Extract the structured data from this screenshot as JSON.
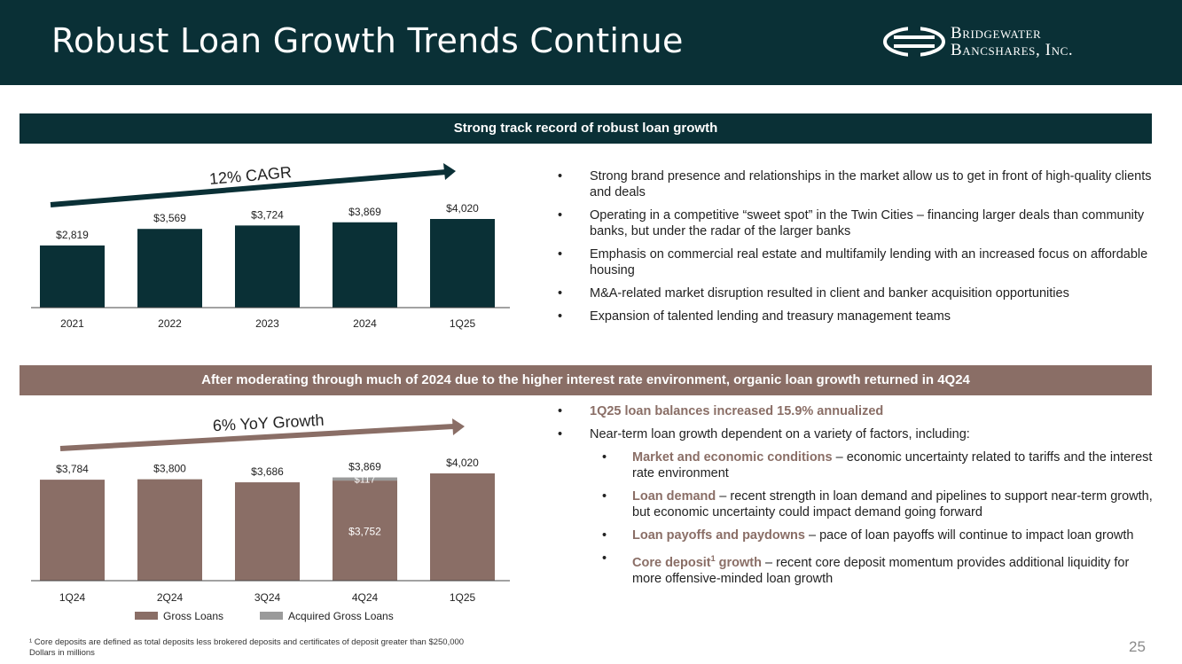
{
  "header": {
    "title": "Robust Loan Growth Trends Continue"
  },
  "logo": {
    "line1": "Bridgewater",
    "line2": "Bancshares, Inc."
  },
  "band_top": {
    "text": "Strong track record of robust loan growth"
  },
  "band_bottom": {
    "text": "After moderating through much of 2024 due to the higher interest rate environment, organic loan growth returned in 4Q24"
  },
  "colors": {
    "teal": "#0a3036",
    "brown": "#8a6e66",
    "gray": "#9a9a9a"
  },
  "chart_data": [
    {
      "type": "bar",
      "title": "",
      "annotation": "12% CAGR",
      "categories": [
        "2021",
        "2022",
        "2023",
        "2024",
        "1Q25"
      ],
      "values": [
        2819,
        3569,
        3724,
        3869,
        4020
      ],
      "labels": [
        "$2,819",
        "$3,569",
        "$3,724",
        "$3,869",
        "$4,020"
      ],
      "ylim": [
        0,
        4020
      ],
      "color": "#0a3036"
    },
    {
      "type": "bar",
      "stacked": true,
      "title": "",
      "annotation": "6% YoY Growth",
      "categories": [
        "1Q24",
        "2Q24",
        "3Q24",
        "4Q24",
        "1Q25"
      ],
      "series": [
        {
          "name": "Gross Loans",
          "values": [
            3784,
            3800,
            3686,
            3752,
            4020
          ],
          "color": "#8a6e66"
        },
        {
          "name": "Acquired Gross Loans",
          "values": [
            0,
            0,
            0,
            117,
            0
          ],
          "color": "#9a9a9a"
        }
      ],
      "total_labels": [
        "$3,784",
        "$3,800",
        "$3,686",
        "$3,869",
        "$4,020"
      ],
      "segment_labels": {
        "gross_4q24": "$3,752",
        "acquired_4q24": "$117"
      },
      "ylim": [
        0,
        4020
      ],
      "legend": [
        "Gross Loans",
        "Acquired Gross Loans"
      ]
    }
  ],
  "bullets_top": [
    "Strong brand presence and relationships in the market allow us to get in front of high-quality clients and deals",
    "Operating in a competitive “sweet spot” in the Twin Cities – financing larger deals than community banks, but under the radar of the larger banks",
    "Emphasis on commercial real estate and multifamily lending with an increased focus on affordable housing",
    "M&A-related market disruption resulted in client and banker acquisition opportunities",
    "Expansion of talented lending and treasury management teams"
  ],
  "bullets_bottom": {
    "b1": "1Q25 loan balances increased 15.9% annualized",
    "b2": "Near-term loan growth dependent on a variety of factors, including:",
    "s1_hl": "Market and economic conditions",
    "s1_text": " – economic uncertainty related to tariffs and the interest rate environment",
    "s2_hl": "Loan demand",
    "s2_text": " – recent strength in loan demand and pipelines to support near-term growth, but economic uncertainty could impact demand going forward",
    "s3_hl": "Loan payoffs and paydowns",
    "s3_text": " – pace of loan payoffs will continue to impact loan growth",
    "s4_hl": "Core deposit",
    "s4_sup": "1",
    "s4_hl2": " growth",
    "s4_text": " – recent core deposit momentum provides additional liquidity for more offensive-minded loan growth"
  },
  "footnote": {
    "line1": "¹ Core deposits are defined as total deposits less brokered deposits and certificates of deposit greater than $250,000",
    "line2": "Dollars in millions"
  },
  "page_number": "25"
}
